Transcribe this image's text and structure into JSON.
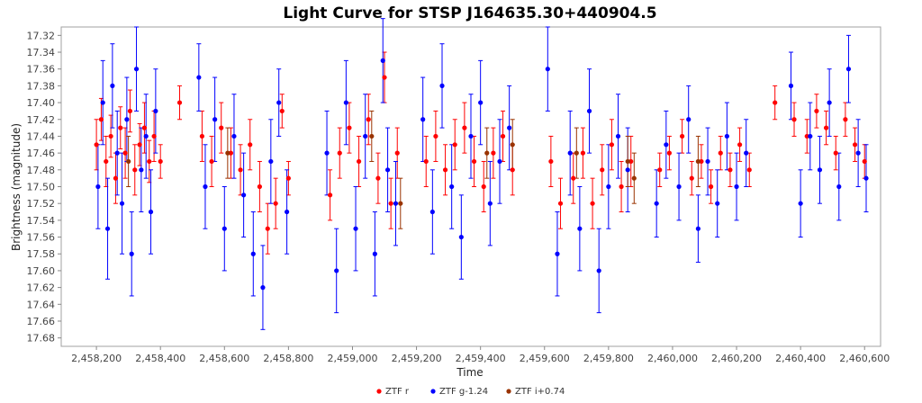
{
  "chart_data": {
    "type": "scatter",
    "title": "Light Curve for STSP J164635.30+440904.5",
    "xlabel": "Time",
    "ylabel": "Brightness (magnitude)",
    "xlim": [
      2458090,
      2460650
    ],
    "ylim": [
      17.69,
      17.31
    ],
    "y_inverted": true,
    "grid": false,
    "legend_position": "bottom-center",
    "x_ticks": [
      2458200,
      2458400,
      2458600,
      2458800,
      2459000,
      2459200,
      2459400,
      2459600,
      2459800,
      2460000,
      2460200,
      2460400,
      2460600
    ],
    "x_tick_labels": [
      "2,458,200",
      "2,458,400",
      "2,458,600",
      "2,458,800",
      "2,459,000",
      "2,459,200",
      "2,459,400",
      "2,459,600",
      "2,459,800",
      "2,460,000",
      "2,460,200",
      "2,460,400",
      "2,460,600"
    ],
    "y_ticks": [
      17.32,
      17.34,
      17.36,
      17.38,
      17.4,
      17.42,
      17.44,
      17.46,
      17.48,
      17.5,
      17.52,
      17.54,
      17.56,
      17.58,
      17.6,
      17.62,
      17.64,
      17.66,
      17.68
    ],
    "y_tick_labels": [
      "17.32",
      "17.34",
      "17.36",
      "17.38",
      "17.40",
      "17.42",
      "17.44",
      "17.46",
      "17.48",
      "17.50",
      "17.52",
      "17.54",
      "17.56",
      "17.58",
      "17.60",
      "17.62",
      "17.64",
      "17.66",
      "17.68"
    ],
    "series": [
      {
        "name": "ZTF r",
        "color": "#ff0000",
        "points": [
          [
            2458200,
            17.45,
            0.03
          ],
          [
            2458215,
            17.42,
            0.025
          ],
          [
            2458230,
            17.47,
            0.03
          ],
          [
            2458245,
            17.44,
            0.025
          ],
          [
            2458260,
            17.49,
            0.03
          ],
          [
            2458275,
            17.43,
            0.025
          ],
          [
            2458290,
            17.46,
            0.03
          ],
          [
            2458305,
            17.41,
            0.025
          ],
          [
            2458320,
            17.48,
            0.03
          ],
          [
            2458335,
            17.45,
            0.025
          ],
          [
            2458350,
            17.43,
            0.03
          ],
          [
            2458365,
            17.47,
            0.025
          ],
          [
            2458380,
            17.44,
            0.03
          ],
          [
            2458400,
            17.47,
            0.02
          ],
          [
            2458460,
            17.4,
            0.02
          ],
          [
            2458530,
            17.44,
            0.03
          ],
          [
            2458560,
            17.47,
            0.03
          ],
          [
            2458590,
            17.43,
            0.03
          ],
          [
            2458620,
            17.46,
            0.03
          ],
          [
            2458650,
            17.48,
            0.03
          ],
          [
            2458680,
            17.45,
            0.03
          ],
          [
            2458710,
            17.5,
            0.03
          ],
          [
            2458735,
            17.55,
            0.03
          ],
          [
            2458760,
            17.52,
            0.03
          ],
          [
            2458780,
            17.41,
            0.02
          ],
          [
            2458800,
            17.49,
            0.02
          ],
          [
            2458930,
            17.51,
            0.03
          ],
          [
            2458960,
            17.46,
            0.03
          ],
          [
            2458990,
            17.43,
            0.03
          ],
          [
            2459020,
            17.47,
            0.03
          ],
          [
            2459050,
            17.42,
            0.03
          ],
          [
            2459080,
            17.49,
            0.03
          ],
          [
            2459100,
            17.37,
            0.03
          ],
          [
            2459120,
            17.52,
            0.03
          ],
          [
            2459140,
            17.46,
            0.03
          ],
          [
            2459230,
            17.47,
            0.03
          ],
          [
            2459260,
            17.44,
            0.03
          ],
          [
            2459290,
            17.48,
            0.03
          ],
          [
            2459320,
            17.45,
            0.03
          ],
          [
            2459350,
            17.43,
            0.03
          ],
          [
            2459380,
            17.47,
            0.03
          ],
          [
            2459410,
            17.5,
            0.03
          ],
          [
            2459440,
            17.46,
            0.03
          ],
          [
            2459470,
            17.44,
            0.03
          ],
          [
            2459500,
            17.48,
            0.03
          ],
          [
            2459620,
            17.47,
            0.03
          ],
          [
            2459650,
            17.52,
            0.03
          ],
          [
            2459690,
            17.49,
            0.03
          ],
          [
            2459720,
            17.46,
            0.03
          ],
          [
            2459750,
            17.52,
            0.03
          ],
          [
            2459780,
            17.48,
            0.03
          ],
          [
            2459810,
            17.45,
            0.03
          ],
          [
            2459840,
            17.5,
            0.03
          ],
          [
            2459870,
            17.47,
            0.03
          ],
          [
            2459960,
            17.48,
            0.02
          ],
          [
            2459990,
            17.46,
            0.02
          ],
          [
            2460030,
            17.44,
            0.02
          ],
          [
            2460060,
            17.49,
            0.02
          ],
          [
            2460090,
            17.47,
            0.02
          ],
          [
            2460120,
            17.5,
            0.02
          ],
          [
            2460150,
            17.46,
            0.02
          ],
          [
            2460180,
            17.48,
            0.02
          ],
          [
            2460210,
            17.45,
            0.02
          ],
          [
            2460240,
            17.48,
            0.02
          ],
          [
            2460320,
            17.4,
            0.02
          ],
          [
            2460380,
            17.42,
            0.02
          ],
          [
            2460420,
            17.44,
            0.02
          ],
          [
            2460450,
            17.41,
            0.02
          ],
          [
            2460480,
            17.43,
            0.02
          ],
          [
            2460510,
            17.46,
            0.02
          ],
          [
            2460540,
            17.42,
            0.02
          ],
          [
            2460570,
            17.45,
            0.02
          ],
          [
            2460600,
            17.47,
            0.02
          ]
        ]
      },
      {
        "name": "ZTF g-1.24",
        "color": "#0000ff",
        "points": [
          [
            2458205,
            17.5,
            0.05
          ],
          [
            2458220,
            17.4,
            0.05
          ],
          [
            2458235,
            17.55,
            0.06
          ],
          [
            2458250,
            17.38,
            0.05
          ],
          [
            2458265,
            17.46,
            0.05
          ],
          [
            2458280,
            17.52,
            0.06
          ],
          [
            2458295,
            17.42,
            0.05
          ],
          [
            2458310,
            17.58,
            0.05
          ],
          [
            2458325,
            17.36,
            0.05
          ],
          [
            2458340,
            17.48,
            0.05
          ],
          [
            2458355,
            17.44,
            0.05
          ],
          [
            2458370,
            17.53,
            0.05
          ],
          [
            2458385,
            17.41,
            0.05
          ],
          [
            2458520,
            17.37,
            0.04
          ],
          [
            2458540,
            17.5,
            0.05
          ],
          [
            2458570,
            17.42,
            0.05
          ],
          [
            2458600,
            17.55,
            0.05
          ],
          [
            2458630,
            17.44,
            0.05
          ],
          [
            2458660,
            17.51,
            0.05
          ],
          [
            2458690,
            17.58,
            0.05
          ],
          [
            2458720,
            17.62,
            0.05
          ],
          [
            2458745,
            17.47,
            0.05
          ],
          [
            2458770,
            17.4,
            0.04
          ],
          [
            2458795,
            17.53,
            0.05
          ],
          [
            2458920,
            17.46,
            0.05
          ],
          [
            2458950,
            17.6,
            0.05
          ],
          [
            2458980,
            17.4,
            0.05
          ],
          [
            2459010,
            17.55,
            0.05
          ],
          [
            2459040,
            17.44,
            0.05
          ],
          [
            2459070,
            17.58,
            0.05
          ],
          [
            2459095,
            17.35,
            0.05
          ],
          [
            2459110,
            17.48,
            0.05
          ],
          [
            2459135,
            17.52,
            0.05
          ],
          [
            2459220,
            17.42,
            0.05
          ],
          [
            2459250,
            17.53,
            0.05
          ],
          [
            2459280,
            17.38,
            0.05
          ],
          [
            2459310,
            17.5,
            0.05
          ],
          [
            2459340,
            17.56,
            0.05
          ],
          [
            2459370,
            17.44,
            0.05
          ],
          [
            2459400,
            17.4,
            0.05
          ],
          [
            2459430,
            17.52,
            0.05
          ],
          [
            2459460,
            17.47,
            0.05
          ],
          [
            2459490,
            17.43,
            0.05
          ],
          [
            2459610,
            17.36,
            0.05
          ],
          [
            2459640,
            17.58,
            0.05
          ],
          [
            2459680,
            17.46,
            0.05
          ],
          [
            2459710,
            17.55,
            0.05
          ],
          [
            2459740,
            17.41,
            0.05
          ],
          [
            2459770,
            17.6,
            0.05
          ],
          [
            2459800,
            17.5,
            0.05
          ],
          [
            2459830,
            17.44,
            0.05
          ],
          [
            2459860,
            17.48,
            0.05
          ],
          [
            2459950,
            17.52,
            0.04
          ],
          [
            2459980,
            17.45,
            0.04
          ],
          [
            2460020,
            17.5,
            0.04
          ],
          [
            2460050,
            17.42,
            0.04
          ],
          [
            2460080,
            17.55,
            0.04
          ],
          [
            2460110,
            17.47,
            0.04
          ],
          [
            2460140,
            17.52,
            0.04
          ],
          [
            2460170,
            17.44,
            0.04
          ],
          [
            2460200,
            17.5,
            0.04
          ],
          [
            2460230,
            17.46,
            0.04
          ],
          [
            2460370,
            17.38,
            0.04
          ],
          [
            2460400,
            17.52,
            0.04
          ],
          [
            2460430,
            17.44,
            0.04
          ],
          [
            2460460,
            17.48,
            0.04
          ],
          [
            2460490,
            17.4,
            0.04
          ],
          [
            2460520,
            17.5,
            0.04
          ],
          [
            2460550,
            17.36,
            0.04
          ],
          [
            2460580,
            17.46,
            0.04
          ],
          [
            2460605,
            17.49,
            0.04
          ]
        ]
      },
      {
        "name": "ZTF i+0.74",
        "color": "#993300",
        "points": [
          [
            2458300,
            17.47,
            0.03
          ],
          [
            2458610,
            17.46,
            0.03
          ],
          [
            2459060,
            17.44,
            0.03
          ],
          [
            2459150,
            17.52,
            0.03
          ],
          [
            2459420,
            17.46,
            0.03
          ],
          [
            2459500,
            17.45,
            0.03
          ],
          [
            2459700,
            17.46,
            0.03
          ],
          [
            2459860,
            17.47,
            0.03
          ],
          [
            2459880,
            17.49,
            0.03
          ],
          [
            2460080,
            17.47,
            0.03
          ]
        ]
      }
    ]
  }
}
